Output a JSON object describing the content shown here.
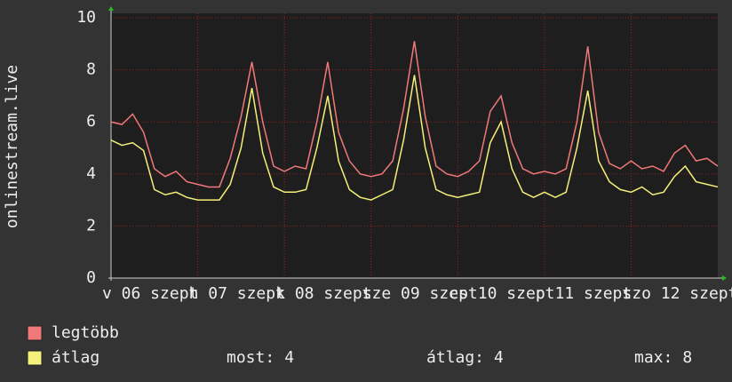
{
  "chart_data": {
    "type": "line",
    "y_label": "onlinestream.live",
    "x": [
      0,
      3,
      6,
      9,
      12,
      15,
      18,
      21,
      24,
      27,
      30,
      33,
      36,
      39,
      42,
      45,
      48,
      51,
      54,
      57,
      60,
      63,
      66,
      69,
      72,
      75,
      78,
      81,
      84,
      87,
      90,
      93,
      96,
      99,
      102,
      105,
      108,
      111,
      114,
      117,
      120,
      123,
      126,
      129,
      132,
      135,
      138,
      141,
      144,
      147,
      150,
      153,
      156,
      159,
      162,
      165,
      168
    ],
    "xlim": [
      0,
      168
    ],
    "xticks": [
      {
        "value": 0,
        "label": "v 06 szept"
      },
      {
        "value": 24,
        "label": "h 07 szept"
      },
      {
        "value": 48,
        "label": "k 08 szept"
      },
      {
        "value": 72,
        "label": "sze 09 szept"
      },
      {
        "value": 96,
        "label": "cs 10 szept"
      },
      {
        "value": 120,
        "label": "p 11 szept"
      },
      {
        "value": 144,
        "label": "szo 12 szept"
      }
    ],
    "ylim": [
      0,
      10
    ],
    "yticks": [
      0,
      2,
      4,
      6,
      8,
      10
    ],
    "grid": true,
    "series": [
      {
        "name": "legtöbb",
        "color": "#f07878",
        "values": [
          6.0,
          5.9,
          6.3,
          5.6,
          4.2,
          3.9,
          4.1,
          3.7,
          3.6,
          3.5,
          3.5,
          4.6,
          6.2,
          8.3,
          6.0,
          4.3,
          4.1,
          4.3,
          4.2,
          6.0,
          8.3,
          5.6,
          4.5,
          4.0,
          3.9,
          4.0,
          4.5,
          6.5,
          9.1,
          6.2,
          4.3,
          4.0,
          3.9,
          4.1,
          4.5,
          6.4,
          7.0,
          5.2,
          4.2,
          4.0,
          4.1,
          4.0,
          4.2,
          6.0,
          8.9,
          5.6,
          4.4,
          4.2,
          4.5,
          4.2,
          4.3,
          4.1,
          4.8,
          5.1,
          4.5,
          4.6,
          4.3
        ]
      },
      {
        "name": "átlag",
        "color": "#f5f07a",
        "values": [
          5.3,
          5.1,
          5.2,
          4.9,
          3.4,
          3.2,
          3.3,
          3.1,
          3.0,
          3.0,
          3.0,
          3.6,
          5.0,
          7.3,
          4.8,
          3.5,
          3.3,
          3.3,
          3.4,
          5.0,
          7.0,
          4.5,
          3.4,
          3.1,
          3.0,
          3.2,
          3.4,
          5.3,
          7.8,
          5.0,
          3.4,
          3.2,
          3.1,
          3.2,
          3.3,
          5.2,
          6.0,
          4.2,
          3.3,
          3.1,
          3.3,
          3.1,
          3.3,
          5.0,
          7.2,
          4.5,
          3.7,
          3.4,
          3.3,
          3.5,
          3.2,
          3.3,
          3.9,
          4.3,
          3.7,
          3.6,
          3.5
        ]
      }
    ],
    "stats": [
      {
        "label": "most:",
        "value": 4
      },
      {
        "label": "átlag:",
        "value": 4
      },
      {
        "label": "max:",
        "value": 8
      }
    ]
  }
}
